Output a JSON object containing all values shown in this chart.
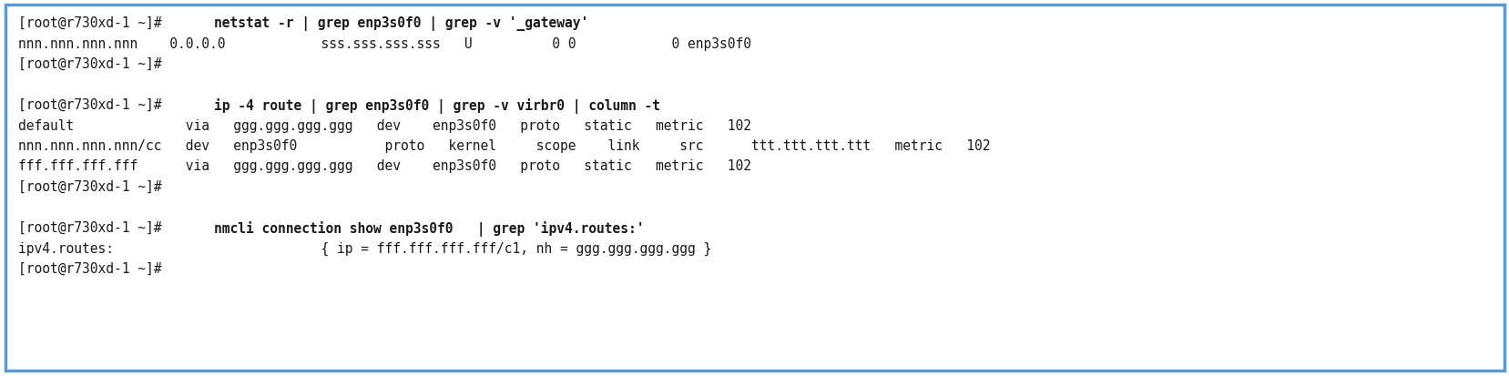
{
  "bg_color": "#ffffff",
  "border_color": "#5b9bd5",
  "border_linewidth": 2.5,
  "figsize": [
    16.58,
    4.14
  ],
  "dpi": 100,
  "font_family": "DejaVu Sans Mono",
  "font_size": 10.5,
  "text_color": "#1a1a1a",
  "prompt_normal": "[root@r730xd-1 ~]# ",
  "sections": [
    {
      "prompt_line": "netstat -r | grep enp3s0f0 | grep -v '_gateway'",
      "output_lines": [
        "nnn.nnn.nnn.nnn    0.0.0.0            sss.sss.sss.sss   U          0 0            0 enp3s0f0"
      ]
    },
    {
      "prompt_line": "ip -4 route | grep enp3s0f0 | grep -v virbr0 | column -t",
      "output_lines": [
        "default              via   ggg.ggg.ggg.ggg   dev    enp3s0f0   proto   static   metric   102",
        "nnn.nnn.nnn.nnn/cc   dev   enp3s0f0           proto   kernel     scope    link     src      ttt.ttt.ttt.ttt   metric   102",
        "fff.fff.fff.fff      via   ggg.ggg.ggg.ggg   dev    enp3s0f0   proto   static   metric   102"
      ]
    },
    {
      "prompt_line": "nmcli connection show enp3s0f0   | grep 'ipv4.routes:'",
      "output_lines": [
        "ipv4.routes:                          { ip = fff.fff.fff.fff/c1, nh = ggg.ggg.ggg.ggg }"
      ]
    }
  ]
}
